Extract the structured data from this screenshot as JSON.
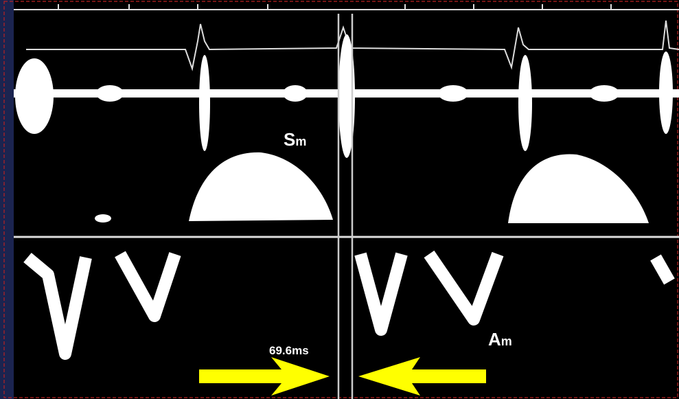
{
  "labels": {
    "systolic": {
      "main": "S",
      "sub": "m"
    },
    "interval": "69.6ms",
    "atrial": {
      "main": "A",
      "sub": "m"
    }
  }
}
